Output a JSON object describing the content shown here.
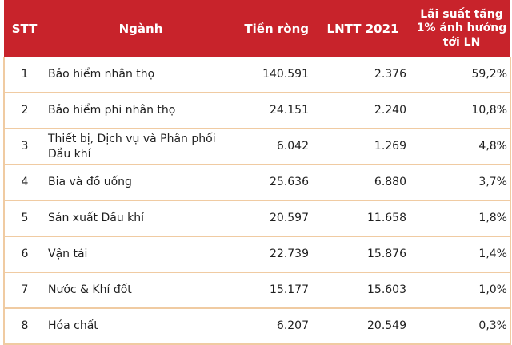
{
  "table": {
    "columns": [
      {
        "key": "stt",
        "label": "STT"
      },
      {
        "key": "industry",
        "label": "Ngành"
      },
      {
        "key": "net",
        "label": "Tiền ròng"
      },
      {
        "key": "lntt",
        "label": "LNTT 2021"
      },
      {
        "key": "impact",
        "label": "Lãi suất tăng 1% ảnh hưởng tới LN"
      }
    ],
    "rows": [
      {
        "stt": "1",
        "industry": "Bảo hiểm nhân thọ",
        "net": "140.591",
        "lntt": "2.376",
        "impact": "59,2%"
      },
      {
        "stt": "2",
        "industry": "Bảo hiểm phi nhân thọ",
        "net": "24.151",
        "lntt": "2.240",
        "impact": "10,8%"
      },
      {
        "stt": "3",
        "industry": "Thiết bị, Dịch vụ và Phân phối Dầu khí",
        "net": "6.042",
        "lntt": "1.269",
        "impact": "4,8%"
      },
      {
        "stt": "4",
        "industry": "Bia và đồ uống",
        "net": "25.636",
        "lntt": "6.880",
        "impact": "3,7%"
      },
      {
        "stt": "5",
        "industry": "Sản xuất Dầu khí",
        "net": "20.597",
        "lntt": "11.658",
        "impact": "1,8%"
      },
      {
        "stt": "6",
        "industry": "Vận tải",
        "net": "22.739",
        "lntt": "15.876",
        "impact": "1,4%"
      },
      {
        "stt": "7",
        "industry": "Nước & Khí đốt",
        "net": "15.177",
        "lntt": "15.603",
        "impact": "1,0%"
      },
      {
        "stt": "8",
        "industry": "Hóa chất",
        "net": "6.207",
        "lntt": "20.549",
        "impact": "0,3%"
      }
    ]
  },
  "colors": {
    "header_bg": "#c8232b",
    "header_text": "#ffffff",
    "row_border": "#f0cba2",
    "body_text": "#1f1f1f",
    "row_bg": "#ffffff"
  }
}
